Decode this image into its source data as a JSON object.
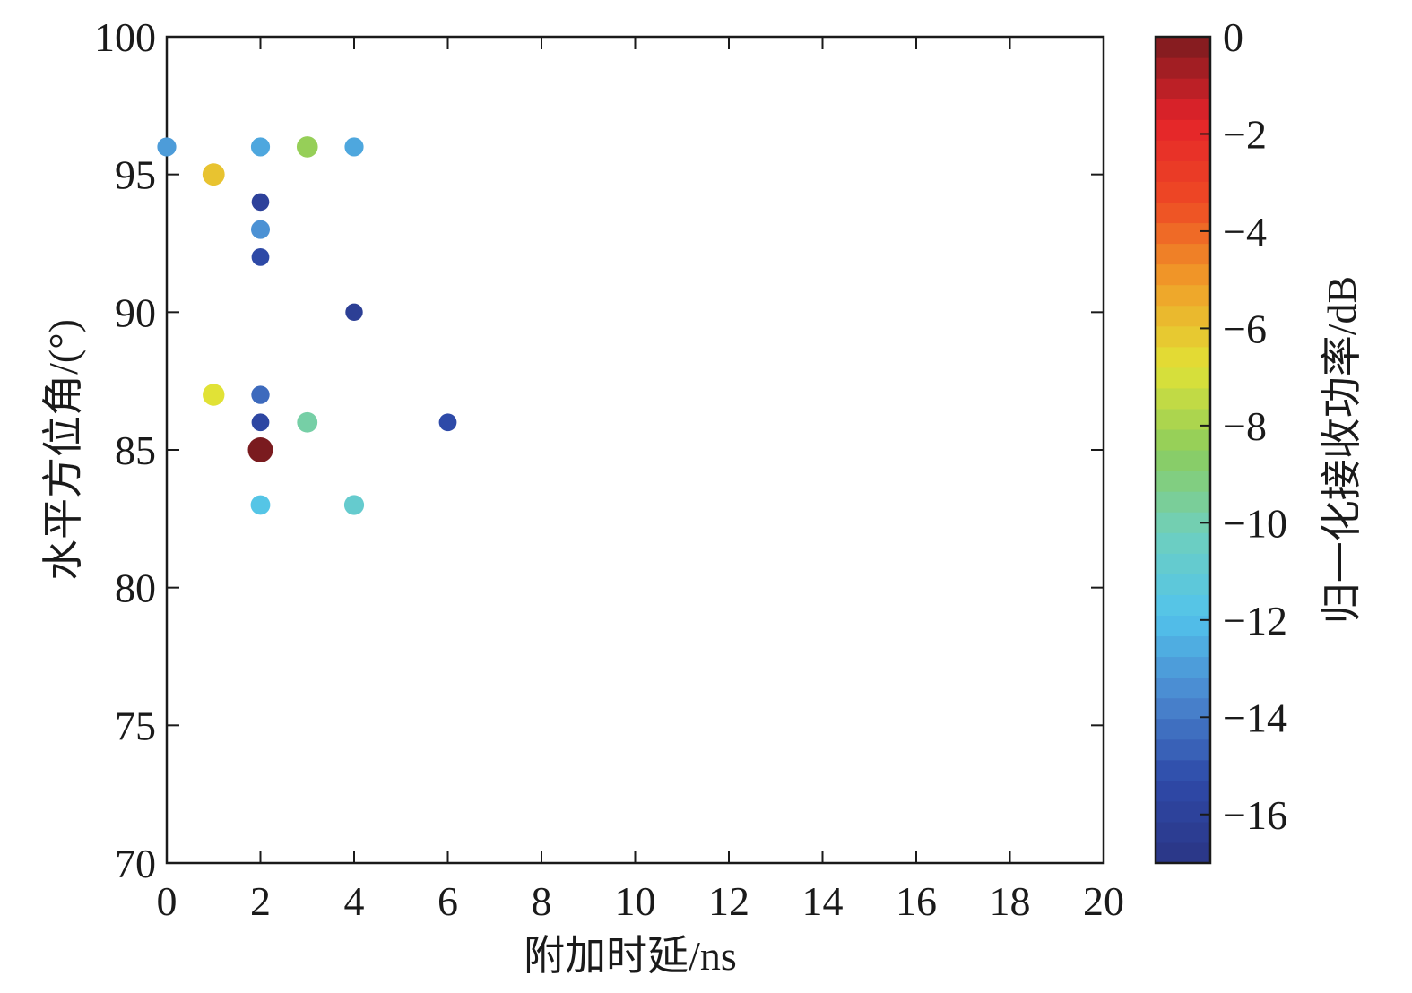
{
  "chart_data": {
    "type": "scatter",
    "xlabel": "附加时延/ns",
    "ylabel": "水平方位角/(°)",
    "colorbar_label": "归一化接收功率/dB",
    "xlim": [
      0,
      20
    ],
    "ylim": [
      70,
      100
    ],
    "clim": [
      -17,
      0
    ],
    "x_ticks": [
      0,
      2,
      4,
      6,
      8,
      10,
      12,
      14,
      16,
      18,
      20
    ],
    "y_ticks": [
      70,
      75,
      80,
      85,
      90,
      95,
      100
    ],
    "colorbar_ticks": [
      0,
      -2,
      -4,
      -6,
      -8,
      -10,
      -12,
      -14,
      -16
    ],
    "colorbar_tick_labels": [
      "0",
      "−2",
      "−4",
      "−6",
      "−8",
      "−10",
      "−12",
      "−14",
      "−16"
    ],
    "grid": false,
    "colormap": "jet-like (dark blue → cyan → green → yellow → orange → red → dark red)",
    "colormap_stops": [
      "#2b3585",
      "#2e4aa8",
      "#4a86cf",
      "#52c4ec",
      "#6fcfbd",
      "#8ccd5d",
      "#e1e236",
      "#f0a029",
      "#ee4a24",
      "#e4232a",
      "#7a1b1f"
    ],
    "points": [
      {
        "x": 0,
        "y": 96,
        "power_db": -13
      },
      {
        "x": 1,
        "y": 95,
        "power_db": -6
      },
      {
        "x": 1,
        "y": 87,
        "power_db": -6.8
      },
      {
        "x": 2,
        "y": 96,
        "power_db": -12.7
      },
      {
        "x": 2,
        "y": 94,
        "power_db": -16
      },
      {
        "x": 2,
        "y": 93,
        "power_db": -13.3
      },
      {
        "x": 2,
        "y": 92,
        "power_db": -15.4
      },
      {
        "x": 2,
        "y": 87,
        "power_db": -14.4
      },
      {
        "x": 2,
        "y": 86,
        "power_db": -15.6
      },
      {
        "x": 2,
        "y": 85,
        "power_db": 0
      },
      {
        "x": 2,
        "y": 83,
        "power_db": -11.7
      },
      {
        "x": 3,
        "y": 96,
        "power_db": -8.3
      },
      {
        "x": 3,
        "y": 86,
        "power_db": -9.8
      },
      {
        "x": 4,
        "y": 96,
        "power_db": -12.7
      },
      {
        "x": 4,
        "y": 90,
        "power_db": -16.2
      },
      {
        "x": 4,
        "y": 83,
        "power_db": -10.8
      },
      {
        "x": 6,
        "y": 86,
        "power_db": -15.3
      }
    ]
  }
}
